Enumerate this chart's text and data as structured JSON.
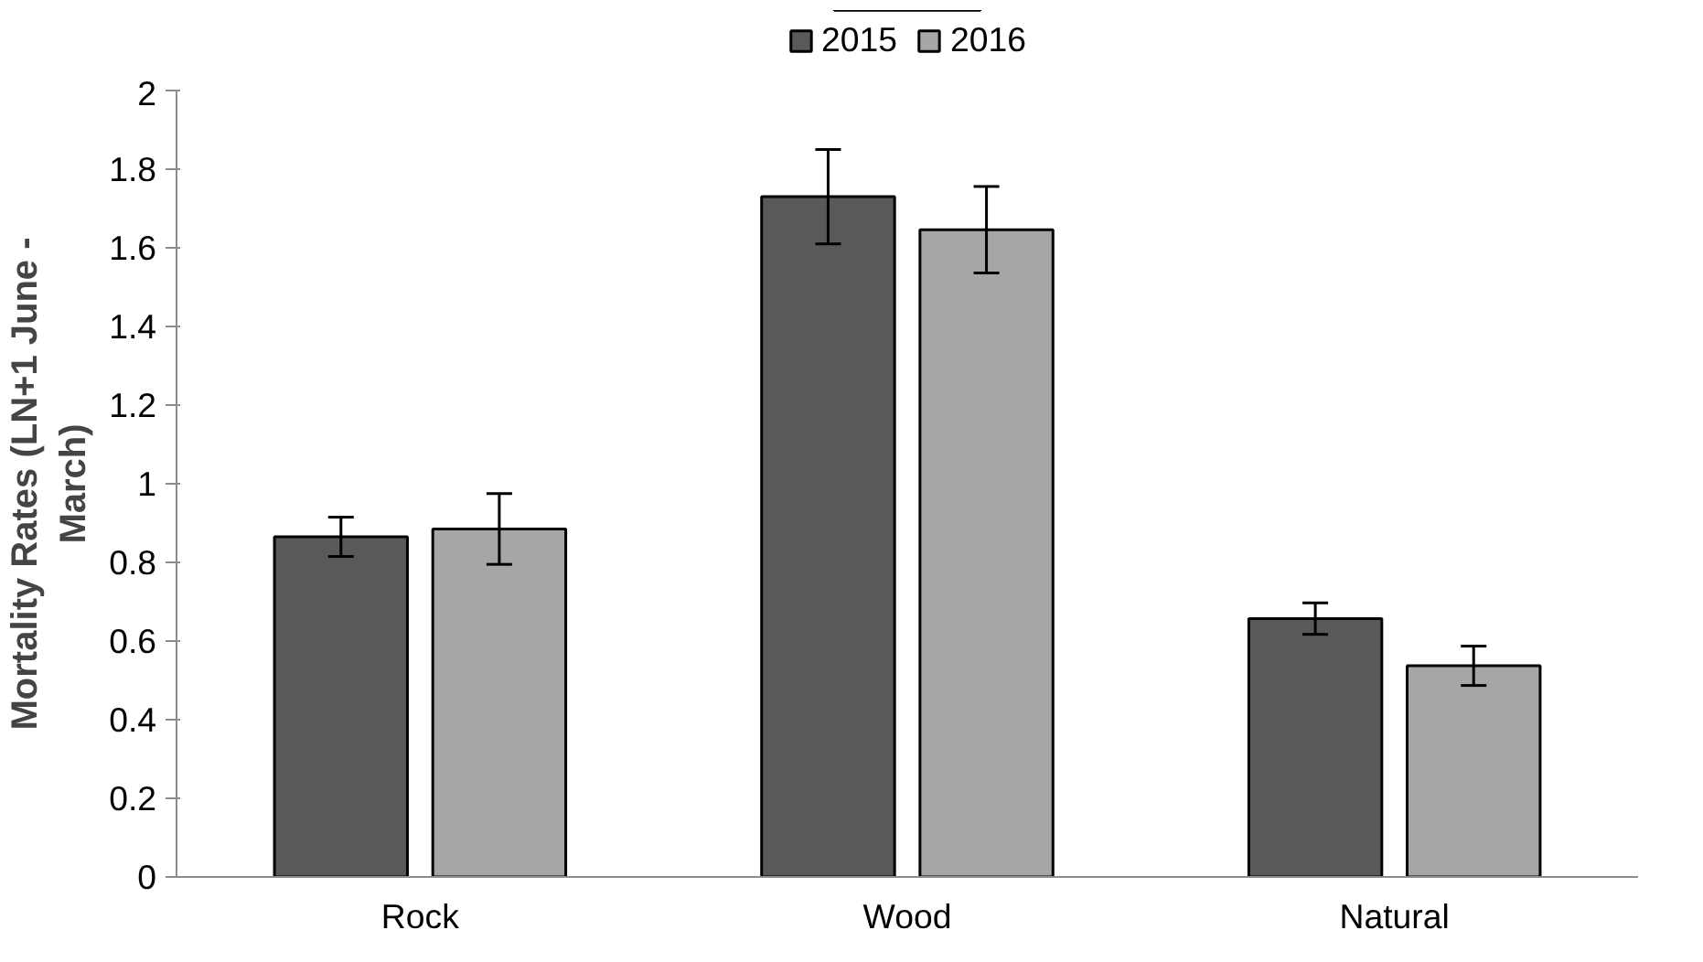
{
  "chart_data": {
    "type": "bar",
    "ylabel": "Mortality Rates (LN+1 June -\nMarch)",
    "categories": [
      "Rock",
      "Wood",
      "Natural"
    ],
    "series": [
      {
        "name": "2015",
        "color": "#595959",
        "values": [
          0.865,
          1.73,
          0.657
        ],
        "errors": [
          0.05,
          0.12,
          0.04
        ]
      },
      {
        "name": "2016",
        "color": "#a6a6a6",
        "values": [
          0.885,
          1.646,
          0.537
        ],
        "errors": [
          0.09,
          0.11,
          0.05
        ]
      }
    ],
    "ylim": [
      0,
      2
    ],
    "yticks": [
      0,
      0.2,
      0.4,
      0.6,
      0.8,
      1,
      1.2,
      1.4,
      1.6,
      1.8,
      2
    ],
    "grid": false,
    "legend": "top"
  }
}
